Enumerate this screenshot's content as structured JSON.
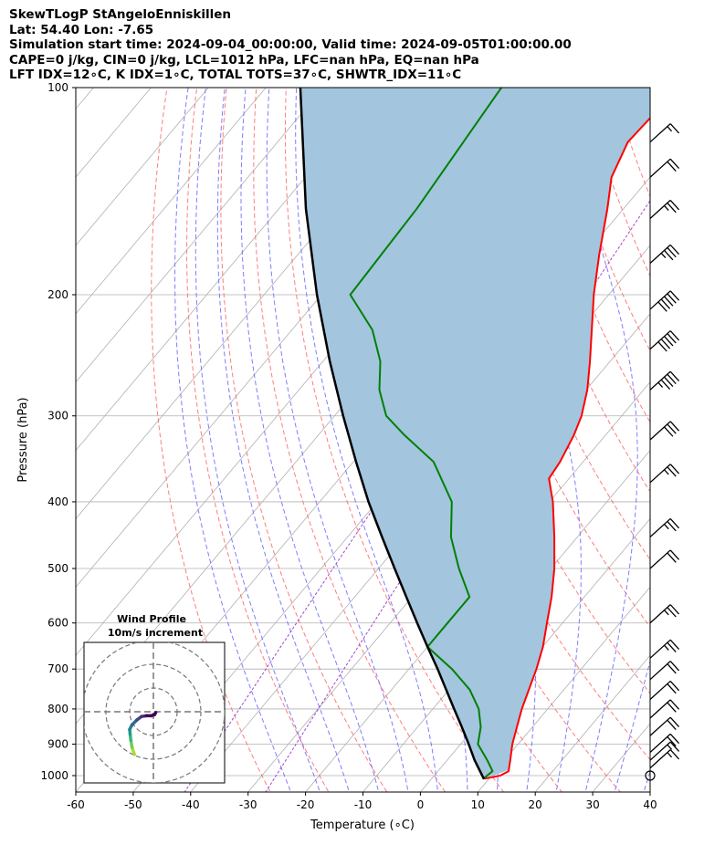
{
  "header": {
    "line1": "SkewTLogP StAngeloEnniskillen",
    "line2": "Lat: 54.40   Lon: -7.65",
    "line3": "Simulation start time: 2024-09-04_00:00:00, Valid time: 2024-09-05T01:00:00.00",
    "line4": "CAPE=0 j/kg, CIN=0 j/kg, LCL=1012 hPa, LFC=nan hPa, EQ=nan hPa",
    "line5": "LFT IDX=12∘C, K IDX=1∘C, TOTAL TOTS=37∘C, SHWTR_IDX=11∘C"
  },
  "chart_data": {
    "type": "skewt",
    "xlabel": "Temperature (∘C)",
    "ylabel": "Pressure (hPa)",
    "xlim": [
      -60,
      40
    ],
    "ylim": [
      1050,
      100
    ],
    "x_ticks": [
      -60,
      -50,
      -40,
      -30,
      -20,
      -10,
      0,
      10,
      20,
      30,
      40
    ],
    "y_ticks": [
      100,
      200,
      300,
      400,
      500,
      600,
      700,
      800,
      900,
      1000
    ],
    "colors": {
      "temperature": "#ff0000",
      "dewpoint": "#008000",
      "parcel": "#000000",
      "cape_fill": "#a3c5de",
      "dry_adiabat": "#ff6666",
      "moist_adiabat": "#6666ff",
      "mixing_ratio": "#9933cc",
      "isotherm": "#b0b0b0"
    },
    "temperature": [
      {
        "p": 1010,
        "t": 9.2
      },
      {
        "p": 1000,
        "t": 11.5
      },
      {
        "p": 985,
        "t": 12.3
      },
      {
        "p": 950,
        "t": 11.0
      },
      {
        "p": 900,
        "t": 9.0
      },
      {
        "p": 850,
        "t": 7.3
      },
      {
        "p": 800,
        "t": 5.5
      },
      {
        "p": 750,
        "t": 3.9
      },
      {
        "p": 700,
        "t": 2.2
      },
      {
        "p": 650,
        "t": 0.1
      },
      {
        "p": 600,
        "t": -2.7
      },
      {
        "p": 550,
        "t": -5.7
      },
      {
        "p": 500,
        "t": -9.4
      },
      {
        "p": 450,
        "t": -14.0
      },
      {
        "p": 400,
        "t": -19.4
      },
      {
        "p": 370,
        "t": -23.5
      },
      {
        "p": 350,
        "t": -24.0
      },
      {
        "p": 320,
        "t": -25.5
      },
      {
        "p": 300,
        "t": -27.0
      },
      {
        "p": 275,
        "t": -29.8
      },
      {
        "p": 250,
        "t": -33.5
      },
      {
        "p": 225,
        "t": -37.8
      },
      {
        "p": 200,
        "t": -42.6
      },
      {
        "p": 175,
        "t": -47.5
      },
      {
        "p": 150,
        "t": -52.8
      },
      {
        "p": 135,
        "t": -56.7
      },
      {
        "p": 120,
        "t": -59.0
      },
      {
        "p": 110,
        "t": -58.6
      },
      {
        "p": 100,
        "t": -59.2
      }
    ],
    "dewpoint": [
      {
        "p": 1010,
        "t": 9.0
      },
      {
        "p": 985,
        "t": 9.5
      },
      {
        "p": 950,
        "t": 7.0
      },
      {
        "p": 900,
        "t": 3.0
      },
      {
        "p": 850,
        "t": 1.0
      },
      {
        "p": 800,
        "t": -2.0
      },
      {
        "p": 750,
        "t": -6.4
      },
      {
        "p": 700,
        "t": -12.5
      },
      {
        "p": 650,
        "t": -20.0
      },
      {
        "p": 600,
        "t": -20.0
      },
      {
        "p": 550,
        "t": -20.0
      },
      {
        "p": 500,
        "t": -26.0
      },
      {
        "p": 450,
        "t": -32.0
      },
      {
        "p": 400,
        "t": -37.0
      },
      {
        "p": 350,
        "t": -46.0
      },
      {
        "p": 320,
        "t": -55.0
      },
      {
        "p": 300,
        "t": -61.0
      },
      {
        "p": 275,
        "t": -66.0
      },
      {
        "p": 250,
        "t": -70.0
      },
      {
        "p": 225,
        "t": -76.0
      },
      {
        "p": 200,
        "t": -85.0
      },
      {
        "p": 150,
        "t": -86.0
      },
      {
        "p": 100,
        "t": -89.0
      }
    ],
    "parcel": [
      {
        "p": 1012,
        "t": 9.2
      },
      {
        "p": 950,
        "t": 4.8
      },
      {
        "p": 900,
        "t": 1.4
      },
      {
        "p": 850,
        "t": -2.3
      },
      {
        "p": 800,
        "t": -6.3
      },
      {
        "p": 750,
        "t": -10.5
      },
      {
        "p": 700,
        "t": -15.0
      },
      {
        "p": 650,
        "t": -20.0
      },
      {
        "p": 600,
        "t": -25.3
      },
      {
        "p": 550,
        "t": -31.0
      },
      {
        "p": 500,
        "t": -37.2
      },
      {
        "p": 450,
        "t": -44.0
      },
      {
        "p": 400,
        "t": -51.5
      },
      {
        "p": 350,
        "t": -59.5
      },
      {
        "p": 300,
        "t": -68.5
      },
      {
        "p": 250,
        "t": -78.8
      },
      {
        "p": 200,
        "t": -90.8
      },
      {
        "p": 150,
        "t": -105.3
      },
      {
        "p": 100,
        "t": -124.0
      }
    ],
    "wind_barbs": [
      {
        "p": 1000,
        "speed_kt": 0
      },
      {
        "p": 975,
        "speed_kt": 15
      },
      {
        "p": 950,
        "speed_kt": 15
      },
      {
        "p": 925,
        "speed_kt": 20
      },
      {
        "p": 875,
        "speed_kt": 20
      },
      {
        "p": 825,
        "speed_kt": 20
      },
      {
        "p": 775,
        "speed_kt": 20
      },
      {
        "p": 725,
        "speed_kt": 20
      },
      {
        "p": 675,
        "speed_kt": 25
      },
      {
        "p": 600,
        "speed_kt": 25
      },
      {
        "p": 500,
        "speed_kt": 20
      },
      {
        "p": 450,
        "speed_kt": 25
      },
      {
        "p": 375,
        "speed_kt": 25
      },
      {
        "p": 325,
        "speed_kt": 30
      },
      {
        "p": 275,
        "speed_kt": 45
      },
      {
        "p": 240,
        "speed_kt": 50
      },
      {
        "p": 210,
        "speed_kt": 50
      },
      {
        "p": 180,
        "speed_kt": 35
      },
      {
        "p": 155,
        "speed_kt": 25
      },
      {
        "p": 135,
        "speed_kt": 20
      },
      {
        "p": 120,
        "speed_kt": 15
      }
    ],
    "hodograph": {
      "title": "Wind Profile",
      "subtitle": "10m/s increment",
      "u": [
        -8,
        -9,
        -9.5,
        -9.8,
        -10,
        -9,
        -7,
        -5,
        -3,
        -1,
        0.5,
        1
      ],
      "v": [
        -18,
        -15,
        -12,
        -9.5,
        -7.5,
        -5.5,
        -3.5,
        -2,
        -1.7,
        -1.7,
        -1.2,
        -0.3
      ]
    }
  }
}
